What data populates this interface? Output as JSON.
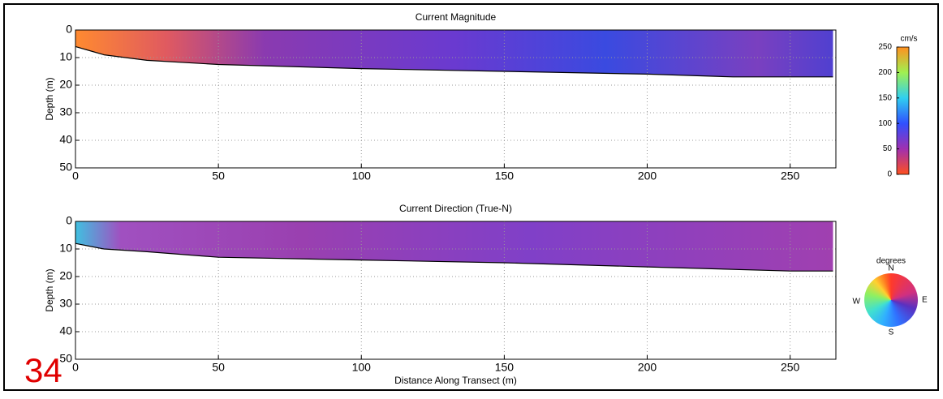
{
  "page_label": "34",
  "chart_data": [
    {
      "type": "heatmap",
      "title": "Current Magnitude",
      "ylabel": "Depth (m)",
      "xlim": [
        0,
        266
      ],
      "ylim": [
        0,
        50
      ],
      "y_inverted": true,
      "grid": true,
      "xticks": [
        0,
        50,
        100,
        150,
        200,
        250
      ],
      "yticks": [
        0,
        10,
        20,
        30,
        40,
        50
      ],
      "series": [
        {
          "color": "#000000",
          "x": [
            0,
            5,
            10,
            25,
            50,
            100,
            150,
            200,
            230,
            250,
            265
          ],
          "values": [
            6,
            7.5,
            9,
            11,
            12.5,
            14,
            15,
            16,
            17,
            17,
            17
          ]
        }
      ],
      "colorbar": {
        "label": "cm/s",
        "lim": [
          0,
          250
        ],
        "ticks": [
          0,
          50,
          100,
          150,
          200,
          250
        ]
      }
    },
    {
      "type": "heatmap",
      "title": "Current Direction (True-N)",
      "ylabel": "Depth (m)",
      "xlabel": "Distance Along Transect (m)",
      "xlim": [
        0,
        266
      ],
      "ylim": [
        0,
        50
      ],
      "y_inverted": true,
      "grid": true,
      "xticks": [
        0,
        50,
        100,
        150,
        200,
        250
      ],
      "yticks": [
        0,
        10,
        20,
        30,
        40,
        50
      ],
      "series": [
        {
          "color": "#000000",
          "x": [
            0,
            5,
            10,
            25,
            50,
            100,
            150,
            200,
            250,
            265
          ],
          "values": [
            8,
            9,
            10,
            11,
            13,
            14,
            15,
            16.5,
            18,
            18
          ]
        }
      ],
      "compass": {
        "label": "degrees",
        "directions": {
          "N": "N",
          "E": "E",
          "S": "S",
          "W": "W"
        }
      }
    }
  ]
}
